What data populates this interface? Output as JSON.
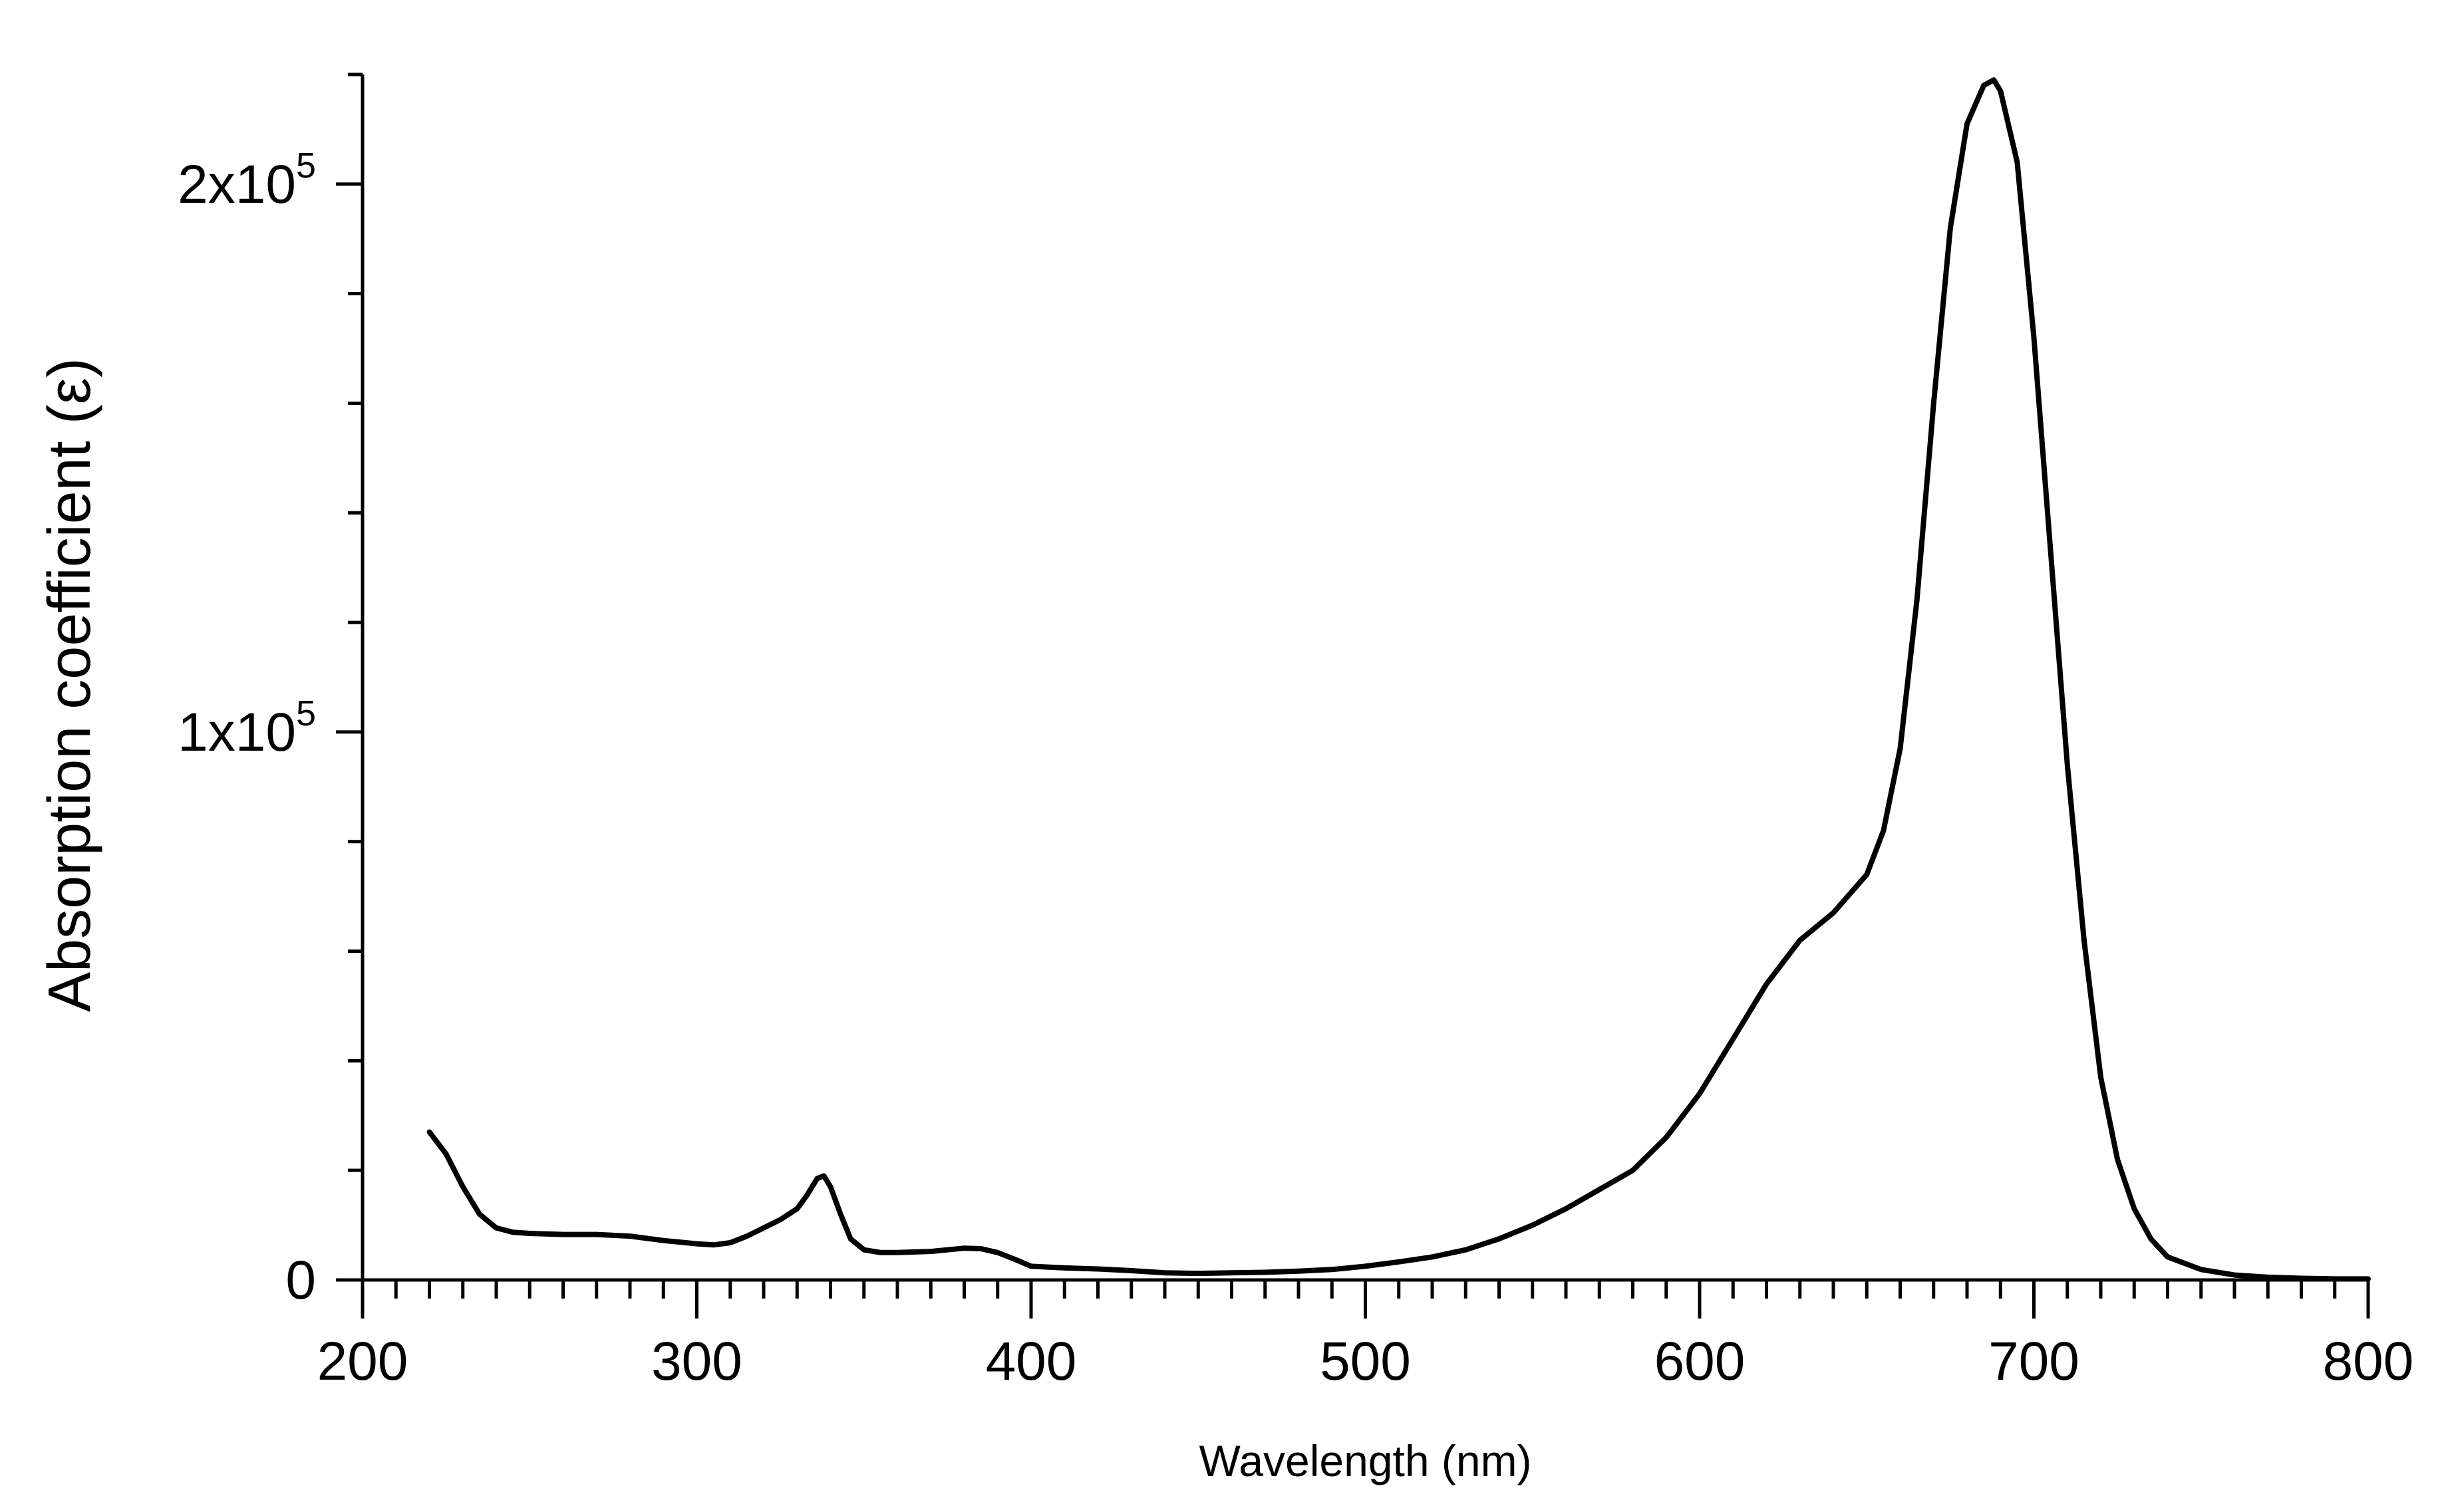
{
  "chart_data": {
    "type": "line",
    "title": "",
    "xlabel": "Wavelength (nm)",
    "ylabel": "Absorption coefficient (ε)",
    "xlim": [
      200,
      800
    ],
    "ylim": [
      0,
      220000
    ],
    "grid": false,
    "legend": "none",
    "x_ticks": [
      {
        "value": 200,
        "label": "200"
      },
      {
        "value": 300,
        "label": "300"
      },
      {
        "value": 400,
        "label": "400"
      },
      {
        "value": 500,
        "label": "500"
      },
      {
        "value": 600,
        "label": "600"
      },
      {
        "value": 700,
        "label": "700"
      },
      {
        "value": 800,
        "label": "800"
      }
    ],
    "y_ticks": [
      {
        "value": 0,
        "mantissa": "0",
        "exponent": ""
      },
      {
        "value": 100000,
        "mantissa": "1x10",
        "exponent": "5"
      },
      {
        "value": 200000,
        "mantissa": "2x10",
        "exponent": "5"
      }
    ],
    "x_minor_step": 10,
    "y_minor_step": 20000,
    "line_color": "#000000",
    "series": [
      {
        "x": [
          220,
          225,
          230,
          235,
          240,
          245,
          250,
          260,
          270,
          280,
          290,
          300,
          305,
          310,
          315,
          320,
          325,
          330,
          333,
          336,
          338,
          340,
          343,
          346,
          350,
          355,
          360,
          370,
          380,
          385,
          390,
          395,
          400,
          410,
          420,
          430,
          440,
          450,
          460,
          470,
          480,
          490,
          500,
          510,
          520,
          530,
          540,
          550,
          560,
          570,
          580,
          590,
          600,
          610,
          620,
          630,
          640,
          650,
          655,
          660,
          665,
          670,
          675,
          680,
          685,
          688,
          690,
          695,
          700,
          705,
          710,
          715,
          720,
          725,
          730,
          735,
          740,
          750,
          760,
          770,
          780,
          790,
          800
        ],
        "y": [
          27000,
          23000,
          17000,
          12000,
          9500,
          8700,
          8500,
          8300,
          8300,
          8000,
          7200,
          6600,
          6400,
          6800,
          8000,
          9500,
          11000,
          13000,
          15500,
          18500,
          19000,
          17000,
          12000,
          7500,
          5500,
          5000,
          5000,
          5200,
          5800,
          5700,
          5000,
          3800,
          2500,
          2200,
          2000,
          1700,
          1300,
          1200,
          1300,
          1400,
          1600,
          1900,
          2500,
          3300,
          4200,
          5500,
          7500,
          10000,
          13000,
          16500,
          20000,
          26000,
          34000,
          44000,
          54000,
          62000,
          67000,
          74000,
          82000,
          97000,
          124000,
          160000,
          192000,
          211000,
          218000,
          219000,
          217000,
          204000,
          172000,
          133000,
          94000,
          62000,
          37000,
          22000,
          13000,
          7500,
          4200,
          1900,
          900,
          500,
          300,
          200,
          200
        ]
      }
    ]
  }
}
